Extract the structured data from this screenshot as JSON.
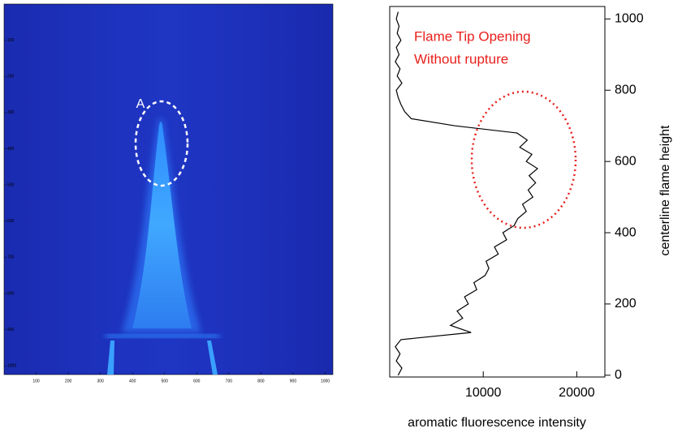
{
  "chart_data": [
    {
      "type": "image",
      "annotation": "A",
      "xlim": [
        0,
        1024
      ],
      "ylim": [
        0,
        1024
      ],
      "y_inverted": true,
      "xticks": [
        100,
        200,
        300,
        400,
        500,
        600,
        700,
        800,
        900,
        1000
      ],
      "yticks": [
        100,
        200,
        300,
        400,
        500,
        600,
        700,
        800,
        900,
        1000
      ]
    },
    {
      "type": "line",
      "xlabel": "aromatic fluorescence intensity",
      "ylabel": "centerline flame height",
      "annotations": [
        "Flame Tip Opening",
        "Without rupture"
      ],
      "color": "#000000",
      "xlim": [
        0,
        23000
      ],
      "ylim": [
        -5,
        1035
      ],
      "xticks": [
        10000,
        20000
      ],
      "yticks": [
        0,
        200,
        400,
        600,
        800,
        1000
      ],
      "x": [
        900,
        1300,
        700,
        1100,
        600,
        1200,
        8700,
        6500,
        7800,
        7200,
        8400,
        8000,
        9300,
        9000,
        10200,
        10600,
        10300,
        11600,
        11200,
        12500,
        12100,
        13300,
        13700,
        14600,
        14200,
        15300,
        14800,
        15600,
        14900,
        15800,
        14600,
        15200,
        13900,
        14700,
        13600,
        7000,
        2300,
        1600,
        1200,
        900,
        700,
        1300,
        800,
        1100,
        600,
        1000,
        700,
        1200,
        800,
        1000,
        700,
        900
      ],
      "y": [
        0,
        20,
        40,
        60,
        80,
        100,
        120,
        140,
        160,
        180,
        200,
        220,
        240,
        260,
        280,
        300,
        320,
        340,
        360,
        380,
        400,
        420,
        440,
        460,
        480,
        500,
        520,
        540,
        560,
        580,
        600,
        620,
        640,
        660,
        680,
        700,
        720,
        740,
        760,
        780,
        800,
        820,
        840,
        860,
        880,
        900,
        920,
        940,
        960,
        980,
        1000,
        1020
      ]
    }
  ]
}
